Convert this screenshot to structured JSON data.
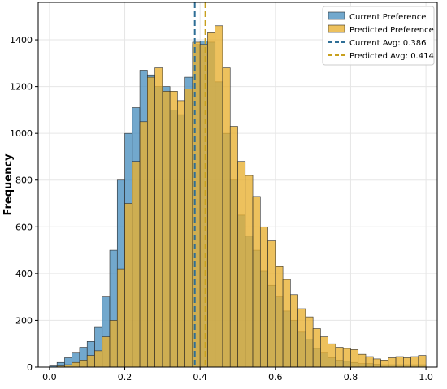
{
  "chart_data": {
    "type": "bar",
    "subtype": "overlaid-histogram",
    "title": "",
    "xlabel": "",
    "ylabel": "Frequency",
    "xlim": [
      -0.03,
      1.03
    ],
    "ylim": [
      0,
      1560
    ],
    "bin_width": 0.02,
    "grid": true,
    "legend_position": "top-right",
    "x_ticks": [
      "0.0",
      "0.2",
      "0.4",
      "0.6",
      "0.8",
      "1.0"
    ],
    "y_ticks": [
      "0",
      "200",
      "400",
      "600",
      "800",
      "1000",
      "1200",
      "1400"
    ],
    "bin_starts": [
      0.0,
      0.02,
      0.04,
      0.06,
      0.08,
      0.1,
      0.12,
      0.14,
      0.16,
      0.18,
      0.2,
      0.22,
      0.24,
      0.26,
      0.28,
      0.3,
      0.32,
      0.34,
      0.36,
      0.38,
      0.4,
      0.42,
      0.44,
      0.46,
      0.48,
      0.5,
      0.52,
      0.54,
      0.56,
      0.58,
      0.6,
      0.62,
      0.64,
      0.66,
      0.68,
      0.7,
      0.72,
      0.74,
      0.76,
      0.78,
      0.8,
      0.82,
      0.84,
      0.86,
      0.88,
      0.9,
      0.92,
      0.94,
      0.96,
      0.98
    ],
    "series": [
      {
        "name": "Current Preference",
        "color": "#4a8fbf",
        "values": [
          5,
          20,
          40,
          60,
          85,
          110,
          170,
          300,
          500,
          800,
          1000,
          1110,
          1270,
          1250,
          1200,
          1200,
          1100,
          1080,
          1240,
          1380,
          1395,
          1390,
          1220,
          1000,
          800,
          650,
          560,
          500,
          410,
          350,
          300,
          240,
          200,
          150,
          120,
          80,
          60,
          40,
          30,
          25,
          20,
          15,
          15,
          12,
          10,
          10,
          10,
          10,
          10,
          10
        ]
      },
      {
        "name": "Predicted Preference",
        "color": "#e8b030",
        "values": [
          0,
          5,
          10,
          20,
          30,
          50,
          70,
          130,
          200,
          420,
          700,
          880,
          1050,
          1240,
          1280,
          1180,
          1180,
          1140,
          1190,
          1390,
          1380,
          1430,
          1460,
          1280,
          1030,
          880,
          820,
          730,
          600,
          540,
          430,
          375,
          310,
          250,
          215,
          165,
          130,
          100,
          85,
          80,
          75,
          55,
          45,
          35,
          30,
          40,
          45,
          40,
          45,
          50
        ]
      }
    ],
    "reference_lines": [
      {
        "name": "Current Avg: 0.386",
        "x": 0.386,
        "color": "#2e6e96",
        "style": "dashed"
      },
      {
        "name": "Predicted Avg: 0.414",
        "x": 0.414,
        "color": "#c8a01e",
        "style": "dashed"
      }
    ]
  }
}
